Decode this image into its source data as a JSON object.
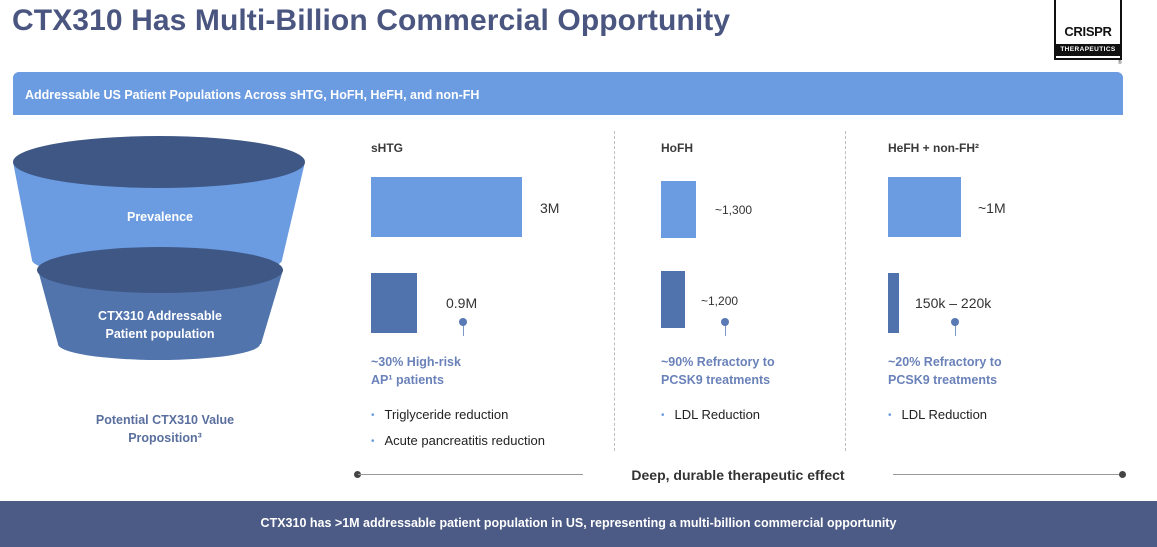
{
  "title": "CTX310 Has Multi-Billion Commercial Opportunity",
  "logo": {
    "main": "CRISPR",
    "sub": "THERAPEUTICS",
    "reg": "®"
  },
  "banner": "Addressable US Patient Populations Across sHTG, HoFH, HeFH, and non-FH",
  "funnel": {
    "top_label": "Prevalence",
    "bottom_label_line1": "CTX310 Addressable",
    "bottom_label_line2": "Patient population",
    "colors": {
      "top": "#6b9be0",
      "top_rim": "#3f5785",
      "bottom": "#5174ad",
      "bottom_rim": "#3f5785"
    }
  },
  "value_prop": {
    "line1": "Potential CTX310 Value",
    "line2": "Proposition³"
  },
  "columns": [
    {
      "heading": "sHTG",
      "prevalence": "3M",
      "addressable": "0.9M",
      "pct_line1": "~30% High-risk",
      "pct_line2": "AP¹ patients",
      "bullets": [
        "Triglyceride reduction",
        "Acute pancreatitis reduction"
      ]
    },
    {
      "heading": "HoFH",
      "prevalence": "~1,300",
      "addressable": "~1,200",
      "pct_line1": "~90% Refractory to",
      "pct_line2": "PCSK9 treatments",
      "bullets": [
        "LDL Reduction"
      ]
    },
    {
      "heading": "HeFH + non-FH²",
      "prevalence": "~1M",
      "addressable": "150k – 220k",
      "pct_line1": "~20% Refractory to",
      "pct_line2": "PCSK9 treatments",
      "bullets": [
        "LDL Reduction"
      ]
    }
  ],
  "effect_label": "Deep, durable therapeutic effect",
  "footer": "CTX310 has >1M addressable patient population in US, representing a multi-billion commercial opportunity",
  "colors": {
    "title": "#4a5680",
    "accent_light": "#6b9be0",
    "accent_dark": "#5173ad",
    "footer_bg": "#4c5b85"
  }
}
